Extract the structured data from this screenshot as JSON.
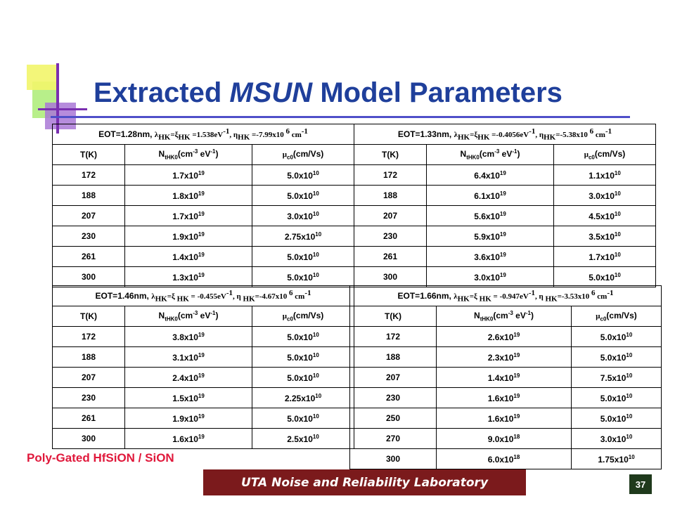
{
  "slide": {
    "title": {
      "pre": "Extracted ",
      "em": "MSUN",
      "post": " Model Parameters"
    },
    "note": "Poly-Gated HfSiON / SiON",
    "footer": "UTA Noise and Reliability Laboratory",
    "page_number": "37"
  },
  "colors": {
    "title": "#1f3f9b",
    "accent_yellow": "#f2f56a",
    "accent_purple": "#7a2fb0",
    "accent_green": "#b8ef8a",
    "note": "#e0183b",
    "footer_bg": "#7b1a1c",
    "page_bg": "#1f3a1c"
  },
  "tables": {
    "col_headers": {
      "t": "T(K)",
      "n_main": "N",
      "n_sub": "tHK0",
      "n_unit_a": "(cm",
      "n_exp_a": "-3",
      "n_unit_b": " eV",
      "n_exp_b": "-1",
      "n_unit_c": ")",
      "mu_main": "μ",
      "mu_sub": "c0",
      "mu_unit": "(cm/Vs)"
    },
    "blocks": [
      {
        "header": {
          "eot": "EOT=1.28nm, ",
          "lambda": "λ",
          "hk1": "HK",
          "eq": "=ξ",
          "hk2": "HK",
          "val1": " =1.538eV",
          "exp1": "-1",
          "eta": ", η",
          "hk3": "HK",
          "val2": " =-7.99x10 ",
          "exp2": "6",
          "unit": " cm",
          "exp3": "-1"
        },
        "rows": [
          {
            "t": "172",
            "n_m": "1.7x10",
            "n_e": "19",
            "mu_m": "5.0x10",
            "mu_e": "10"
          },
          {
            "t": "188",
            "n_m": "1.8x10",
            "n_e": "19",
            "mu_m": "5.0x10",
            "mu_e": "10"
          },
          {
            "t": "207",
            "n_m": "1.7x10",
            "n_e": "19",
            "mu_m": "3.0x10",
            "mu_e": "10"
          },
          {
            "t": "230",
            "n_m": "1.9x10",
            "n_e": "19",
            "mu_m": "2.75x10",
            "mu_e": "10"
          },
          {
            "t": "261",
            "n_m": "1.4x10",
            "n_e": "19",
            "mu_m": "5.0x10",
            "mu_e": "10"
          },
          {
            "t": "300",
            "n_m": "1.3x10",
            "n_e": "19",
            "mu_m": "5.0x10",
            "mu_e": "10"
          }
        ]
      },
      {
        "header": {
          "eot": "EOT=1.33nm, ",
          "lambda": "λ",
          "hk1": "HK",
          "eq": "=ξ",
          "hk2": "HK",
          "val1": " =-0.4056eV",
          "exp1": "-1",
          "eta": ", η",
          "hk3": "HK",
          "val2": "=-5.38x10 ",
          "exp2": "6",
          "unit": " cm",
          "exp3": "-1"
        },
        "rows": [
          {
            "t": "172",
            "n_m": "6.4x10",
            "n_e": "19",
            "mu_m": "1.1x10",
            "mu_e": "10"
          },
          {
            "t": "188",
            "n_m": "6.1x10",
            "n_e": "19",
            "mu_m": "3.0x10",
            "mu_e": "10"
          },
          {
            "t": "207",
            "n_m": "5.6x10",
            "n_e": "19",
            "mu_m": "4.5x10",
            "mu_e": "10"
          },
          {
            "t": "230",
            "n_m": "5.9x10",
            "n_e": "19",
            "mu_m": "3.5x10",
            "mu_e": "10"
          },
          {
            "t": "261",
            "n_m": "3.6x10",
            "n_e": "19",
            "mu_m": "1.7x10",
            "mu_e": "10"
          },
          {
            "t": "300",
            "n_m": "3.0x10",
            "n_e": "19",
            "mu_m": "5.0x10",
            "mu_e": "10"
          }
        ]
      },
      {
        "header": {
          "eot": "EOT=1.46nm, ",
          "lambda": "λ",
          "hk1": "HK",
          "eq": "=ξ ",
          "hk2": "HK",
          "val1": " = -0.455eV",
          "exp1": "-1",
          "eta": ", η ",
          "hk3": "HK",
          "val2": "=-4.67x10 ",
          "exp2": "6",
          "unit": " cm",
          "exp3": "-1"
        },
        "rows": [
          {
            "t": "172",
            "n_m": "3.8x10",
            "n_e": "19",
            "mu_m": "5.0x10",
            "mu_e": "10"
          },
          {
            "t": "188",
            "n_m": "3.1x10",
            "n_e": "19",
            "mu_m": "5.0x10",
            "mu_e": "10"
          },
          {
            "t": "207",
            "n_m": "2.4x10",
            "n_e": "19",
            "mu_m": "5.0x10",
            "mu_e": "10"
          },
          {
            "t": "230",
            "n_m": "1.5x10",
            "n_e": "19",
            "mu_m": "2.25x10",
            "mu_e": "10"
          },
          {
            "t": "261",
            "n_m": "1.9x10",
            "n_e": "19",
            "mu_m": "5.0x10",
            "mu_e": "10"
          },
          {
            "t": "300",
            "n_m": "1.6x10",
            "n_e": "19",
            "mu_m": "2.5x10",
            "mu_e": "10"
          }
        ]
      },
      {
        "header": {
          "eot": "EOT=1.66nm, ",
          "lambda": "λ",
          "hk1": "HK",
          "eq": "=ξ ",
          "hk2": "HK",
          "val1": " = -0.947eV",
          "exp1": "-1",
          "eta": ", η ",
          "hk3": "HK",
          "val2": "=-3.53x10 ",
          "exp2": "6",
          "unit": " cm",
          "exp3": "-1"
        },
        "rows": [
          {
            "t": "172",
            "n_m": "2.6x10",
            "n_e": "19",
            "mu_m": "5.0x10",
            "mu_e": "10"
          },
          {
            "t": "188",
            "n_m": "2.3x10",
            "n_e": "19",
            "mu_m": "5.0x10",
            "mu_e": "10"
          },
          {
            "t": "207",
            "n_m": "1.4x10",
            "n_e": "19",
            "mu_m": "7.5x10",
            "mu_e": "10"
          },
          {
            "t": "230",
            "n_m": "1.6x10",
            "n_e": "19",
            "mu_m": "5.0x10",
            "mu_e": "10"
          },
          {
            "t": "250",
            "n_m": "1.6x10",
            "n_e": "19",
            "mu_m": "5.0x10",
            "mu_e": "10"
          },
          {
            "t": "270",
            "n_m": "9.0x10",
            "n_e": "18",
            "mu_m": "3.0x10",
            "mu_e": "10"
          },
          {
            "t": "300",
            "n_m": "6.0x10",
            "n_e": "18",
            "mu_m": "1.75x10",
            "mu_e": "10"
          }
        ]
      }
    ]
  }
}
